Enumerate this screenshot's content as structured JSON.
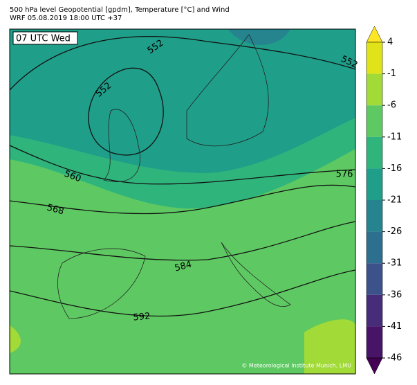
{
  "header": {
    "line1": "500 hPa level Geopotential [gpdm], Temperature [°C] and Wind",
    "line2": "WRF 05.08.2019 18:00 UTC +37"
  },
  "map": {
    "time_label": "07 UTC Wed",
    "copyright": "© Meteorological Institute Munich, LMU",
    "contour_labels": [
      "552",
      "552",
      "552",
      "560",
      "568",
      "576",
      "584",
      "592"
    ]
  },
  "colorbar": {
    "ticks": [
      4,
      -1,
      -6,
      -11,
      -16,
      -21,
      -26,
      -31,
      -36,
      -41,
      -46
    ],
    "colors": [
      "#fde725",
      "#dfe318",
      "#a2da37",
      "#5ec962",
      "#2fb47c",
      "#1f9e89",
      "#25848e",
      "#2d6f8e",
      "#3b528b",
      "#472c7a",
      "#481467",
      "#440154"
    ]
  }
}
